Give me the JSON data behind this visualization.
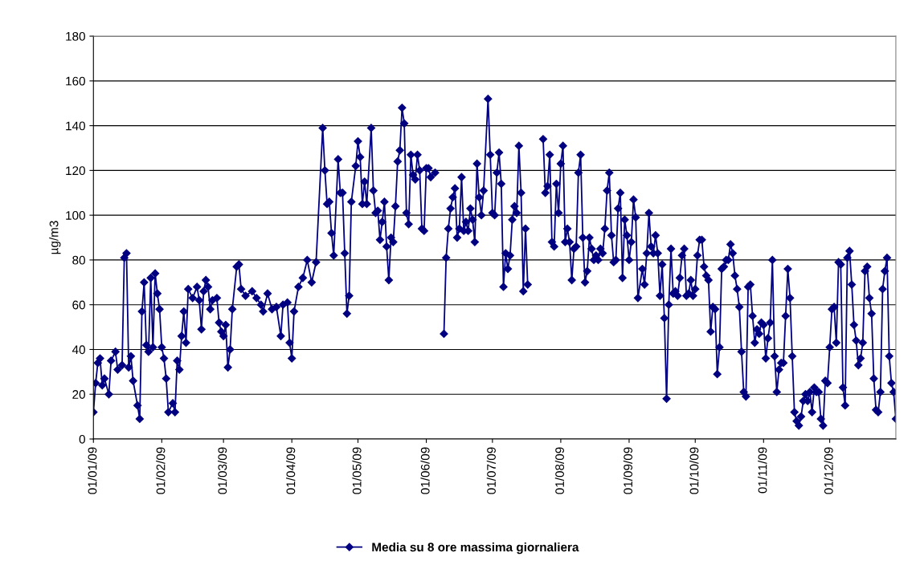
{
  "chart_data": {
    "type": "line",
    "ylabel": "µg/m3",
    "legend": "bottom",
    "grid": "y",
    "marker": "diamond",
    "line_style": "solid",
    "xlim": [
      "2009-01-01",
      "2009-12-31"
    ],
    "xticks": [
      {
        "value": "2009-01-01",
        "label": "01/01/09"
      },
      {
        "value": "2009-02-01",
        "label": "01/02/09"
      },
      {
        "value": "2009-03-01",
        "label": "01/03/09"
      },
      {
        "value": "2009-04-01",
        "label": "01/04/09"
      },
      {
        "value": "2009-05-01",
        "label": "01/05/09"
      },
      {
        "value": "2009-06-01",
        "label": "01/06/09"
      },
      {
        "value": "2009-07-01",
        "label": "01/07/09"
      },
      {
        "value": "2009-08-01",
        "label": "01/08/09"
      },
      {
        "value": "2009-09-01",
        "label": "01/09/09"
      },
      {
        "value": "2009-10-01",
        "label": "01/10/09"
      },
      {
        "value": "2009-11-01",
        "label": "01/11/09"
      },
      {
        "value": "2009-12-01",
        "label": "01/12/09"
      }
    ],
    "ylim": [
      0,
      180
    ],
    "yticks": [
      0,
      20,
      40,
      60,
      80,
      100,
      120,
      140,
      160,
      180
    ],
    "x": [
      "2009-01-01",
      "2009-01-02",
      "2009-01-03",
      "2009-01-04",
      "2009-01-05",
      "2009-01-06",
      "2009-01-08",
      "2009-01-09",
      "2009-01-11",
      "2009-01-12",
      "2009-01-14",
      "2009-01-15",
      "2009-01-16",
      "2009-01-17",
      "2009-01-18",
      "2009-01-19",
      "2009-01-21",
      "2009-01-22",
      "2009-01-23",
      "2009-01-24",
      "2009-01-25",
      "2009-01-26",
      "2009-01-27",
      "2009-01-28",
      "2009-01-29",
      "2009-01-30",
      "2009-01-31",
      "2009-02-01",
      "2009-02-02",
      "2009-02-03",
      "2009-02-04",
      "2009-02-06",
      "2009-02-07",
      "2009-02-08",
      "2009-02-09",
      "2009-02-10",
      "2009-02-11",
      "2009-02-12",
      "2009-02-13",
      "2009-02-15",
      "2009-02-17",
      "2009-02-18",
      "2009-02-19",
      "2009-02-20",
      "2009-02-21",
      "2009-02-22",
      "2009-02-23",
      "2009-02-24",
      "2009-02-26",
      "2009-02-27",
      "2009-02-28",
      "2009-03-01",
      "2009-03-02",
      "2009-03-03",
      "2009-03-04",
      "2009-03-05",
      "2009-03-07",
      "2009-03-08",
      "2009-03-09",
      "2009-03-11",
      "2009-03-14",
      "2009-03-16",
      "2009-03-18",
      "2009-03-19",
      "2009-03-21",
      "2009-03-23",
      "2009-03-25",
      "2009-03-27",
      "2009-03-28",
      "2009-03-30",
      "2009-03-31",
      "2009-04-01",
      "2009-04-02",
      "2009-04-04",
      "2009-04-06",
      "2009-04-08",
      "2009-04-10",
      "2009-04-12",
      "2009-04-15",
      "2009-04-16",
      "2009-04-17",
      "2009-04-18",
      "2009-04-19",
      "2009-04-20",
      "2009-04-22",
      "2009-04-23",
      "2009-04-24",
      "2009-04-25",
      "2009-04-26",
      "2009-04-27",
      "2009-04-28",
      "2009-04-30",
      "2009-05-01",
      "2009-05-02",
      "2009-05-03",
      "2009-05-04",
      "2009-05-05",
      "2009-05-07",
      "2009-05-08",
      "2009-05-09",
      "2009-05-10",
      "2009-05-11",
      "2009-05-12",
      "2009-05-13",
      "2009-05-14",
      "2009-05-15",
      "2009-05-16",
      "2009-05-17",
      "2009-05-18",
      "2009-05-19",
      "2009-05-20",
      "2009-05-21",
      "2009-05-22",
      "2009-05-23",
      "2009-05-24",
      "2009-05-25",
      "2009-05-26",
      "2009-05-27",
      "2009-05-28",
      "2009-05-29",
      "2009-05-30",
      "2009-05-31",
      "2009-06-01",
      "2009-06-02",
      "2009-06-03",
      "2009-06-05",
      "2009-06-07",
      "2009-06-09",
      "2009-06-10",
      "2009-06-11",
      "2009-06-12",
      "2009-06-13",
      "2009-06-14",
      "2009-06-15",
      "2009-06-16",
      "2009-06-17",
      "2009-06-18",
      "2009-06-19",
      "2009-06-20",
      "2009-06-21",
      "2009-06-22",
      "2009-06-23",
      "2009-06-24",
      "2009-06-25",
      "2009-06-26",
      "2009-06-27",
      "2009-06-29",
      "2009-06-30",
      "2009-07-01",
      "2009-07-02",
      "2009-07-03",
      "2009-07-04",
      "2009-07-05",
      "2009-07-06",
      "2009-07-07",
      "2009-07-08",
      "2009-07-09",
      "2009-07-10",
      "2009-07-11",
      "2009-07-12",
      "2009-07-13",
      "2009-07-14",
      "2009-07-15",
      "2009-07-16",
      "2009-07-17",
      "2009-07-20",
      "2009-07-24",
      "2009-07-25",
      "2009-07-26",
      "2009-07-27",
      "2009-07-28",
      "2009-07-29",
      "2009-07-30",
      "2009-07-31",
      "2009-08-01",
      "2009-08-02",
      "2009-08-03",
      "2009-08-04",
      "2009-08-05",
      "2009-08-06",
      "2009-08-07",
      "2009-08-08",
      "2009-08-09",
      "2009-08-10",
      "2009-08-11",
      "2009-08-12",
      "2009-08-13",
      "2009-08-14",
      "2009-08-15",
      "2009-08-16",
      "2009-08-17",
      "2009-08-18",
      "2009-08-19",
      "2009-08-20",
      "2009-08-21",
      "2009-08-22",
      "2009-08-23",
      "2009-08-24",
      "2009-08-25",
      "2009-08-26",
      "2009-08-27",
      "2009-08-28",
      "2009-08-29",
      "2009-08-30",
      "2009-08-31",
      "2009-09-01",
      "2009-09-02",
      "2009-09-03",
      "2009-09-04",
      "2009-09-05",
      "2009-09-07",
      "2009-09-08",
      "2009-09-09",
      "2009-09-10",
      "2009-09-11",
      "2009-09-12",
      "2009-09-13",
      "2009-09-14",
      "2009-09-15",
      "2009-09-16",
      "2009-09-17",
      "2009-09-18",
      "2009-09-19",
      "2009-09-20",
      "2009-09-21",
      "2009-09-22",
      "2009-09-23",
      "2009-09-24",
      "2009-09-25",
      "2009-09-26",
      "2009-09-27",
      "2009-09-28",
      "2009-09-29",
      "2009-09-30",
      "2009-10-01",
      "2009-10-02",
      "2009-10-03",
      "2009-10-04",
      "2009-10-05",
      "2009-10-06",
      "2009-10-07",
      "2009-10-08",
      "2009-10-09",
      "2009-10-10",
      "2009-10-11",
      "2009-10-12",
      "2009-10-13",
      "2009-10-14",
      "2009-10-15",
      "2009-10-16",
      "2009-10-17",
      "2009-10-18",
      "2009-10-19",
      "2009-10-20",
      "2009-10-21",
      "2009-10-22",
      "2009-10-23",
      "2009-10-24",
      "2009-10-25",
      "2009-10-26",
      "2009-10-27",
      "2009-10-28",
      "2009-10-29",
      "2009-10-30",
      "2009-10-31",
      "2009-11-01",
      "2009-11-02",
      "2009-11-03",
      "2009-11-04",
      "2009-11-05",
      "2009-11-06",
      "2009-11-07",
      "2009-11-08",
      "2009-11-09",
      "2009-11-10",
      "2009-11-11",
      "2009-11-12",
      "2009-11-13",
      "2009-11-14",
      "2009-11-15",
      "2009-11-16",
      "2009-11-17",
      "2009-11-18",
      "2009-11-19",
      "2009-11-20",
      "2009-11-21",
      "2009-11-22",
      "2009-11-23",
      "2009-11-24",
      "2009-11-25",
      "2009-11-26",
      "2009-11-27",
      "2009-11-28",
      "2009-11-29",
      "2009-11-30",
      "2009-12-01",
      "2009-12-02",
      "2009-12-03",
      "2009-12-04",
      "2009-12-05",
      "2009-12-06",
      "2009-12-07",
      "2009-12-08",
      "2009-12-09",
      "2009-12-10",
      "2009-12-11",
      "2009-12-12",
      "2009-12-13",
      "2009-12-14",
      "2009-12-15",
      "2009-12-16",
      "2009-12-17",
      "2009-12-18",
      "2009-12-19",
      "2009-12-20",
      "2009-12-21",
      "2009-12-22",
      "2009-12-23",
      "2009-12-24",
      "2009-12-25",
      "2009-12-26",
      "2009-12-27",
      "2009-12-28",
      "2009-12-29",
      "2009-12-30",
      "2009-12-31"
    ],
    "series": [
      {
        "name": "Media su 8 ore massima giornaliera",
        "color": "#000080",
        "values": [
          12,
          25,
          34,
          36,
          24,
          27,
          20,
          35,
          39,
          31,
          33,
          81,
          83,
          32,
          37,
          26,
          15,
          9,
          57,
          70,
          42,
          39,
          72,
          41,
          74,
          65,
          58,
          41,
          36,
          27,
          12,
          16,
          12,
          35,
          31,
          46,
          57,
          43,
          67,
          63,
          68,
          62,
          49,
          66,
          71,
          68,
          58,
          62,
          63,
          52,
          48,
          46,
          51,
          32,
          40,
          58,
          77,
          78,
          67,
          64,
          66,
          63,
          60,
          57,
          65,
          58,
          59,
          46,
          60,
          61,
          43,
          36,
          57,
          68,
          72,
          80,
          70,
          79,
          139,
          120,
          105,
          106,
          92,
          82,
          125,
          110,
          110,
          83,
          56,
          64,
          106,
          122,
          133,
          126,
          105,
          115,
          105,
          139,
          111,
          101,
          102,
          89,
          97,
          106,
          86,
          71,
          90,
          88,
          104,
          124,
          129,
          148,
          141,
          101,
          96,
          127,
          118,
          116,
          127,
          120,
          94,
          93,
          121,
          121,
          117,
          119,
          null,
          47,
          81,
          94,
          103,
          108,
          112,
          90,
          94,
          117,
          93,
          97,
          93,
          103,
          98,
          88,
          123,
          108,
          100,
          111,
          152,
          127,
          101,
          100,
          119,
          128,
          114,
          68,
          83,
          76,
          82,
          98,
          104,
          101,
          131,
          110,
          66,
          94,
          69,
          null,
          134,
          110,
          113,
          127,
          88,
          86,
          114,
          101,
          123,
          131,
          88,
          94,
          88,
          71,
          85,
          86,
          119,
          127,
          90,
          70,
          75,
          90,
          85,
          80,
          82,
          80,
          85,
          83,
          94,
          111,
          119,
          91,
          79,
          80,
          103,
          110,
          72,
          98,
          91,
          80,
          88,
          107,
          99,
          63,
          76,
          69,
          83,
          101,
          86,
          83,
          91,
          83,
          64,
          78,
          54,
          18,
          60,
          85,
          65,
          66,
          64,
          72,
          82,
          85,
          64,
          65,
          71,
          64,
          67,
          82,
          89,
          89,
          77,
          73,
          71,
          48,
          59,
          58,
          29,
          41,
          76,
          77,
          80,
          80,
          87,
          83,
          73,
          67,
          59,
          39,
          21,
          19,
          68,
          69,
          55,
          43,
          49,
          47,
          52,
          51,
          36,
          45,
          52,
          80,
          37,
          21,
          31,
          34,
          34,
          55,
          76,
          63,
          37,
          12,
          8,
          6,
          10,
          17,
          20,
          17,
          21,
          12,
          23,
          21,
          21,
          9,
          6,
          26,
          25,
          41,
          58,
          59,
          43,
          79,
          78,
          23,
          15,
          81,
          84,
          69,
          51,
          44,
          33,
          36,
          43,
          75,
          77,
          63,
          56,
          27,
          13,
          12,
          21,
          67,
          75,
          81,
          37,
          25,
          21,
          9
        ]
      }
    ]
  }
}
